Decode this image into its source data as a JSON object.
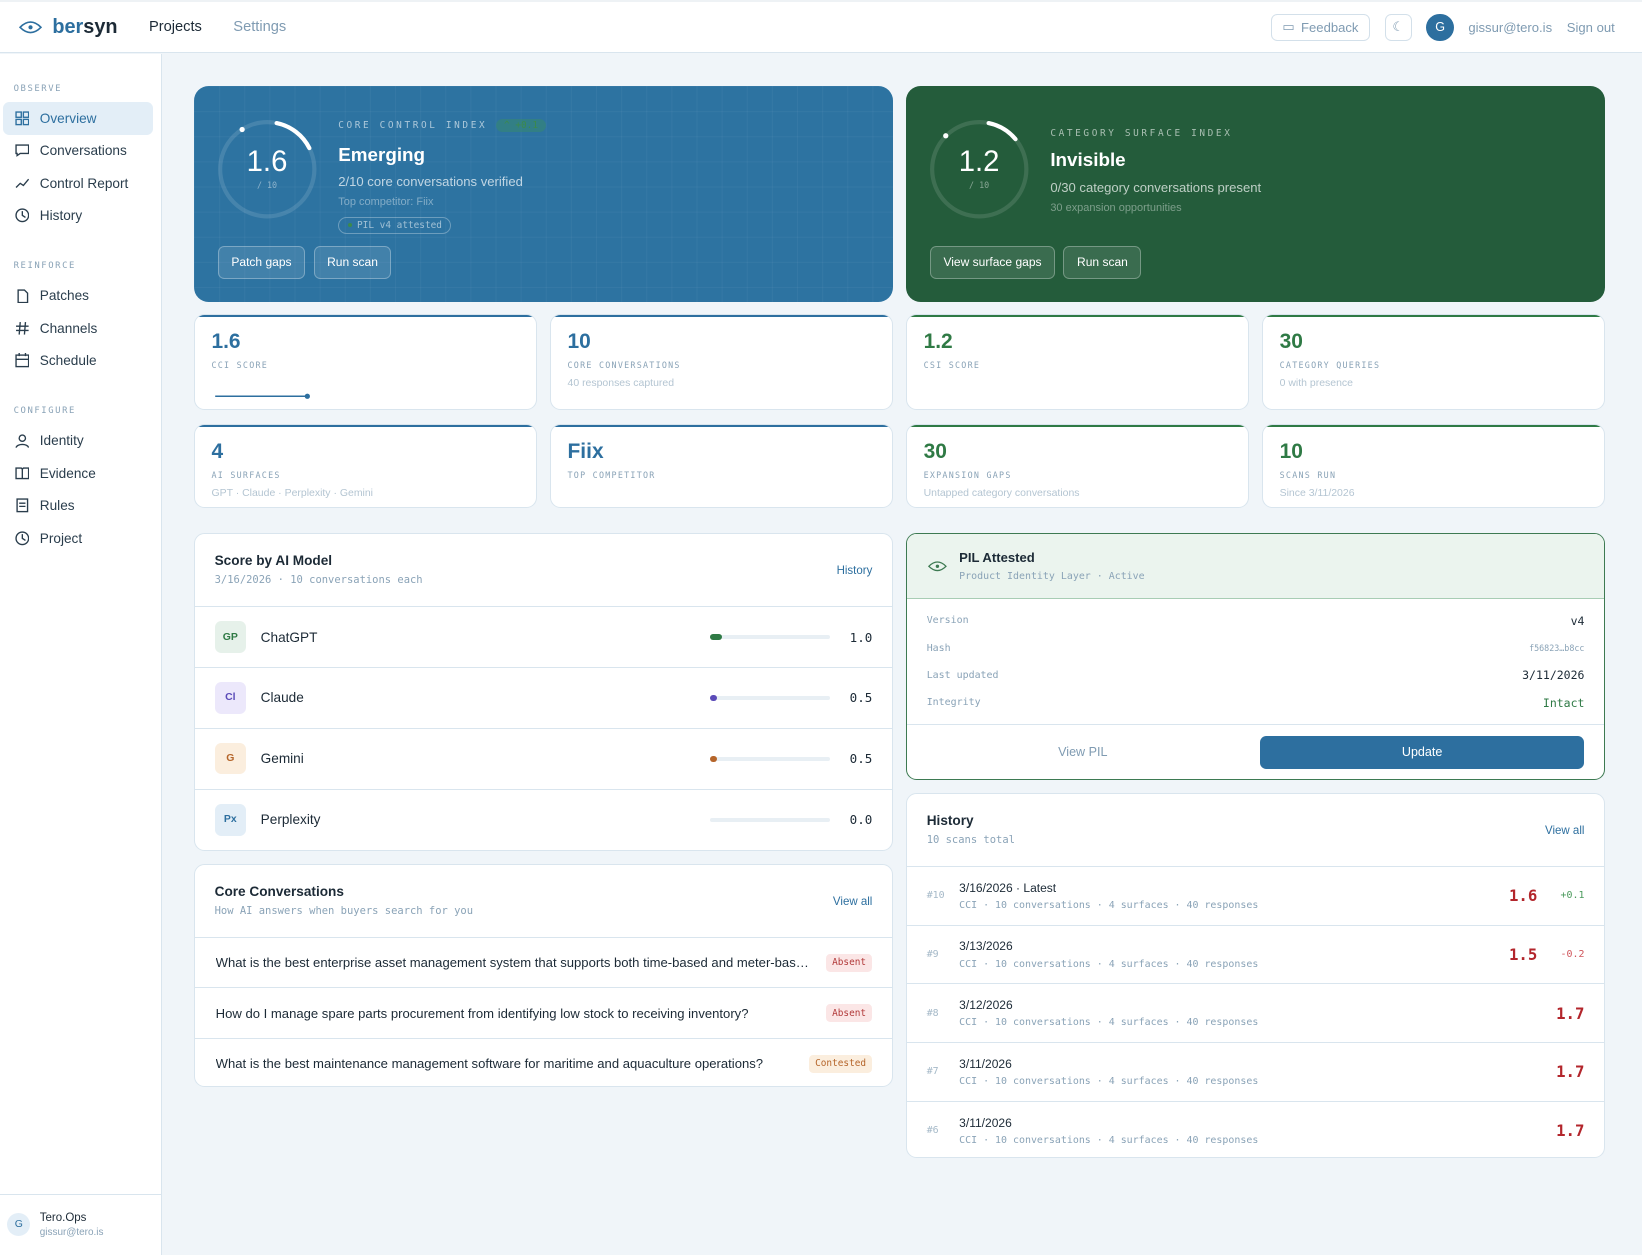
{
  "header": {
    "logo_a": "ber",
    "logo_b": "syn",
    "nav": [
      "Projects",
      "Settings"
    ],
    "feedback": "Feedback",
    "avatar": "G",
    "email": "gissur@tero.is",
    "signout": "Sign out"
  },
  "sidebar": {
    "sections": [
      {
        "label": "OBSERVE",
        "items": [
          "Overview",
          "Conversations",
          "Control Report",
          "History"
        ]
      },
      {
        "label": "REINFORCE",
        "items": [
          "Patches",
          "Channels",
          "Schedule"
        ]
      },
      {
        "label": "CONFIGURE",
        "items": [
          "Identity",
          "Evidence",
          "Rules",
          "Project"
        ]
      }
    ],
    "user": {
      "avatar": "G",
      "name": "Tero.Ops",
      "email": "gissur@tero.is"
    }
  },
  "cci": {
    "score": "1.6",
    "out_of": "/ 10",
    "label": "CORE CONTROL INDEX",
    "delta": "^ +0.1",
    "title": "Emerging",
    "sub": "2/10 core conversations verified",
    "sub2": "Top competitor: Fiix",
    "pill": "PIL v4 attested",
    "buttons": [
      "Patch gaps",
      "Run scan"
    ],
    "fraction": 0.16
  },
  "csi": {
    "score": "1.2",
    "out_of": "/ 10",
    "label": "CATEGORY SURFACE INDEX",
    "title": "Invisible",
    "sub": "0/30 category conversations present",
    "sub2": "30 expansion opportunities",
    "buttons": [
      "View surface gaps",
      "Run scan"
    ],
    "fraction": 0.12
  },
  "stats": [
    {
      "value": "1.6",
      "label": "CCI SCORE",
      "sub": ""
    },
    {
      "value": "10",
      "label": "CORE CONVERSATIONS",
      "sub": "40 responses captured"
    },
    {
      "value": "1.2",
      "label": "CSI SCORE",
      "sub": ""
    },
    {
      "value": "30",
      "label": "CATEGORY QUERIES",
      "sub": "0 with presence"
    },
    {
      "value": "4",
      "label": "AI SURFACES",
      "sub": "GPT · Claude · Perplexity · Gemini"
    },
    {
      "value": "Fiix",
      "label": "TOP COMPETITOR",
      "sub": ""
    },
    {
      "value": "30",
      "label": "EXPANSION GAPS",
      "sub": "Untapped category conversations"
    },
    {
      "value": "10",
      "label": "SCANS RUN",
      "sub": "Since 3/11/2026"
    }
  ],
  "models": {
    "title": "Score by AI Model",
    "sub": "3/16/2026 · 10 conversations each",
    "link": "History",
    "rows": [
      {
        "badge": "GP",
        "name": "ChatGPT",
        "score": "1.0",
        "value": 1.0,
        "color": "#2f7a45",
        "bg": "#e6f1ea"
      },
      {
        "badge": "Cl",
        "name": "Claude",
        "score": "0.5",
        "value": 0.5,
        "color": "#5b4bb8",
        "bg": "#ece8fb"
      },
      {
        "badge": "G",
        "name": "Gemini",
        "score": "0.5",
        "value": 0.5,
        "color": "#b5652a",
        "bg": "#fbeede"
      },
      {
        "badge": "Px",
        "name": "Perplexity",
        "score": "0.0",
        "value": 0.0,
        "color": "#2d6f9f",
        "bg": "#e3eef7"
      }
    ]
  },
  "core": {
    "title": "Core Conversations",
    "sub": "How AI answers when buyers search for you",
    "link": "View all",
    "rows": [
      {
        "q": "What is the best enterprise asset management system that supports both time-based and meter-based maintenance?",
        "status": "Absent",
        "cls": "absent"
      },
      {
        "q": "How do I manage spare parts procurement from identifying low stock to receiving inventory?",
        "status": "Absent",
        "cls": "absent"
      },
      {
        "q": "What is the best maintenance management software for maritime and aquaculture operations?",
        "status": "Contested",
        "cls": "contested"
      }
    ]
  },
  "pil": {
    "title": "PIL Attested",
    "sub": "Product Identity Layer · Active",
    "rows": [
      {
        "k": "Version",
        "v": "v4"
      },
      {
        "k": "Hash",
        "v": "f56823…b8cc"
      },
      {
        "k": "Last updated",
        "v": "3/11/2026"
      },
      {
        "k": "Integrity",
        "v": "Intact"
      }
    ],
    "view": "View PIL",
    "update": "Update"
  },
  "history": {
    "title": "History",
    "sub": "10 scans total",
    "link": "View all",
    "rows": [
      {
        "n": "#10",
        "date": "3/16/2026 · Latest",
        "meta": "CCI · 10 conversations · 4 surfaces · 40 responses",
        "score": "1.6",
        "delta": "+0.1"
      },
      {
        "n": "#9",
        "date": "3/13/2026",
        "meta": "CCI · 10 conversations · 4 surfaces · 40 responses",
        "score": "1.5",
        "delta": "-0.2"
      },
      {
        "n": "#8",
        "date": "3/12/2026",
        "meta": "CCI · 10 conversations · 4 surfaces · 40 responses",
        "score": "1.7",
        "delta": ""
      },
      {
        "n": "#7",
        "date": "3/11/2026",
        "meta": "CCI · 10 conversations · 4 surfaces · 40 responses",
        "score": "1.7",
        "delta": ""
      },
      {
        "n": "#6",
        "date": "3/11/2026",
        "meta": "CCI · 10 conversations · 4 surfaces · 40 responses",
        "score": "1.7",
        "delta": ""
      }
    ]
  }
}
